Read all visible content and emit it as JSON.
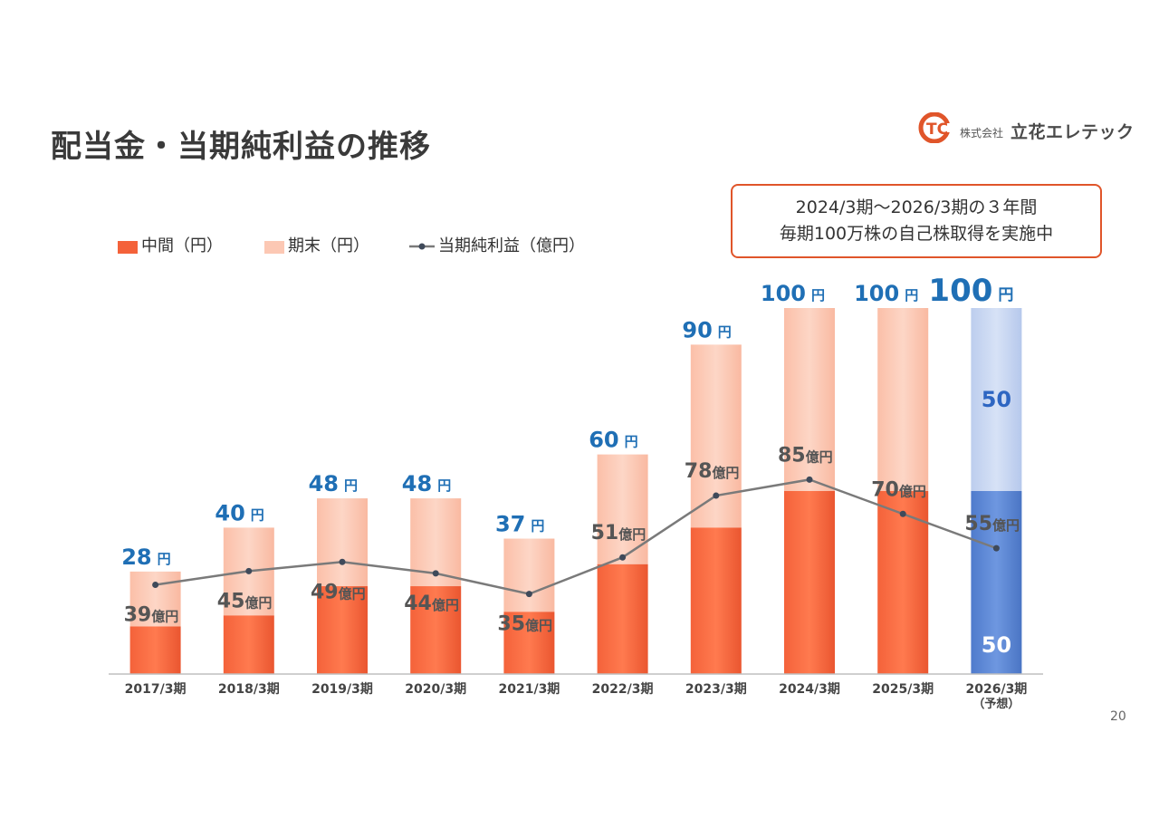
{
  "title": "配当金・当期純利益の推移",
  "logo": {
    "small": "株式会社",
    "name": "立花エレテック",
    "mark": "TC"
  },
  "callout": {
    "line1": "2024/3期～2026/3期の３年間",
    "line2": "毎期100万株の自己株取得を実施中"
  },
  "legend": {
    "interim": "中間（円）",
    "final": "期末（円）",
    "profit": "当期純利益（億円）"
  },
  "page_number": "20",
  "colors": {
    "interim": "#f4623a",
    "final": "#fcc8b4",
    "forecast_interim": "#5b86d4",
    "forecast_final": "#c9d7f2",
    "dividend_label": "#1f6fb5",
    "profit_line": "#7a7a7a",
    "profit_label": "#555555",
    "accent": "#e0552a"
  },
  "chart_data": {
    "type": "bar",
    "stacked": true,
    "categories": [
      "2017/3期",
      "2018/3期",
      "2019/3期",
      "2020/3期",
      "2021/3期",
      "2022/3期",
      "2023/3期",
      "2024/3期",
      "2025/3期",
      "2026/3期"
    ],
    "category_notes": [
      "",
      "",
      "",
      "",
      "",
      "",
      "",
      "",
      "",
      "（予想）"
    ],
    "series": [
      {
        "name": "中間（円）",
        "values": [
          13,
          16,
          24,
          24,
          17,
          30,
          40,
          50,
          50,
          50
        ]
      },
      {
        "name": "期末（円）",
        "values": [
          15,
          24,
          24,
          24,
          20,
          30,
          50,
          50,
          50,
          50
        ]
      }
    ],
    "dividend_total": [
      28,
      40,
      48,
      48,
      37,
      60,
      90,
      100,
      100,
      100
    ],
    "dividend_unit": "円",
    "forecast_index": 9,
    "forecast_segment_labels": {
      "interim": "50",
      "final": "50"
    },
    "line_series": {
      "name": "当期純利益（億円）",
      "values": [
        39,
        45,
        49,
        44,
        35,
        51,
        78,
        85,
        70,
        55
      ],
      "unit": "億円",
      "ylim": [
        0,
        160
      ]
    },
    "ylim": [
      0,
      100
    ]
  }
}
